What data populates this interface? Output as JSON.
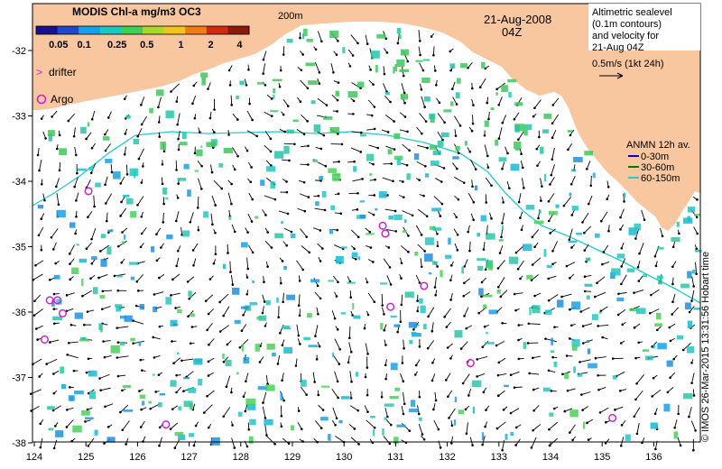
{
  "colorbar": {
    "title": "MODIS Chl-a mg/m3 OC3",
    "ticks": [
      "0.05",
      "0.1",
      "0.25",
      "0.5",
      "1",
      "2",
      "4"
    ],
    "colors": [
      "#1a0f8c",
      "#1f48c9",
      "#1aa0e6",
      "#19c8c0",
      "#3fcf55",
      "#a8d92a",
      "#f0c51c",
      "#f07c14",
      "#d12a0e",
      "#8c1a0a"
    ]
  },
  "legend": {
    "drifter": "drifter",
    "argo": "Argo"
  },
  "map_title": {
    "date": "21-Aug-2008",
    "time": "04Z"
  },
  "altimetry_note": {
    "line1": "Altimetric sealevel",
    "line2": "(0.1m contours)",
    "line3": "and velocity for",
    "line4": "21-Aug 04Z",
    "line5": "0.5m/s (1kt 24h)"
  },
  "anmn_legend": {
    "title": "ANMN 12h av.",
    "items": [
      {
        "label": "0-30m",
        "color": "#0000cc"
      },
      {
        "label": "30-60m",
        "color": "#007700"
      },
      {
        "label": "60-150m",
        "color": "#22cccc"
      }
    ]
  },
  "contour_label": "200m",
  "credit": "© IMOS 26-Mar-2015 13:31:56 Hobart time",
  "axes": {
    "x_ticks": [
      "124",
      "125",
      "126",
      "127",
      "128",
      "129",
      "130",
      "131",
      "132",
      "133",
      "134",
      "135",
      "136"
    ],
    "y_ticks": [
      "-32",
      "-33",
      "-34",
      "-35",
      "-36",
      "-37",
      "-38"
    ]
  },
  "colors": {
    "land": "#f8c79f",
    "contour": "#22cccc",
    "argo": "#cc22cc",
    "arrow": "#000000"
  },
  "argo_floats": [
    {
      "lon": 125.05,
      "lat": -34.15
    },
    {
      "lon": 130.75,
      "lat": -34.68
    },
    {
      "lon": 130.8,
      "lat": -34.8
    },
    {
      "lon": 124.3,
      "lat": -35.82
    },
    {
      "lon": 124.45,
      "lat": -35.82
    },
    {
      "lon": 124.55,
      "lat": -36.02
    },
    {
      "lon": 130.9,
      "lat": -35.92
    },
    {
      "lon": 131.55,
      "lat": -35.6
    },
    {
      "lon": 124.2,
      "lat": -36.42
    },
    {
      "lon": 132.45,
      "lat": -36.78
    },
    {
      "lon": 126.55,
      "lat": -37.72
    },
    {
      "lon": 135.2,
      "lat": -37.62
    }
  ]
}
